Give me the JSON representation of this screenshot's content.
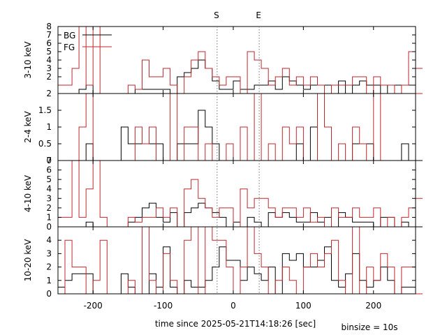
{
  "chart_data": {
    "type": "line",
    "style": "step-histogram",
    "xlabel": "time since 2025-05-21T14:18:26 [sec]",
    "binsize_label": "binsize = 10s",
    "xlim": [
      -250,
      260
    ],
    "xticks": [
      -200,
      -100,
      0,
      100,
      200
    ],
    "xticklabels": [
      "-200",
      "-100",
      "0",
      "100",
      "200"
    ],
    "markers": [
      {
        "label": "S",
        "x": -23
      },
      {
        "label": "E",
        "x": 37
      }
    ],
    "bin_start": -250,
    "bin_width": 10,
    "colors": {
      "BG": "#000000",
      "FG": "#c0272d"
    },
    "legend": {
      "entries": [
        "BG",
        "FG"
      ],
      "placement": "top-left"
    },
    "panels": [
      {
        "ylabel": "3-10 keV",
        "ylim": [
          0,
          8
        ],
        "yticks": [
          2,
          3,
          4,
          5,
          6,
          7,
          8
        ],
        "ytick_bottom": "2",
        "series": [
          {
            "name": "BG",
            "values": [
              0,
              0,
              0,
              0.5,
              1,
              0,
              0,
              0,
              0,
              0,
              0,
              0.5,
              0.5,
              0.5,
              0.5,
              0.5,
              0,
              2,
              2.5,
              3,
              4,
              3,
              1.5,
              0.5,
              0.5,
              1.5,
              0.5,
              0.5,
              1,
              1,
              1.5,
              0.5,
              2,
              1.5,
              1,
              0.5,
              1,
              1,
              1,
              0,
              1.5,
              0,
              1,
              1.5,
              1,
              1,
              0,
              1,
              1,
              1,
              1,
              0
            ]
          },
          {
            "name": "FG",
            "values": [
              1,
              1,
              3,
              8,
              1,
              8,
              0,
              0,
              0,
              0,
              1,
              0.5,
              4,
              2,
              2,
              3,
              1,
              0,
              2,
              4,
              5,
              3,
              2,
              1,
              2,
              2,
              0,
              5,
              4,
              3,
              1,
              2,
              3,
              1,
              2,
              1,
              2,
              1,
              0,
              1,
              1,
              1,
              2,
              2,
              0,
              2,
              1,
              1,
              0,
              1,
              5,
              3
            ]
          }
        ]
      },
      {
        "ylabel": "2-4 keV",
        "ylim": [
          0,
          2
        ],
        "yticks": [
          0.5,
          1,
          1.5
        ],
        "ytick_bottom": "0",
        "series": [
          {
            "name": "BG",
            "values": [
              0,
              0,
              0,
              0,
              0.5,
              0,
              0,
              0,
              0,
              1,
              0.5,
              0.5,
              0.5,
              0.5,
              0.5,
              0,
              0,
              0.5,
              0.5,
              0.5,
              1.5,
              1,
              0.5,
              0,
              0,
              0,
              0,
              0,
              0,
              0,
              0,
              0,
              0,
              0,
              0.5,
              0,
              1,
              0,
              0,
              0,
              0,
              0,
              0.5,
              0.5,
              0.5,
              0,
              0,
              0,
              0,
              0.5,
              0,
              0
            ]
          },
          {
            "name": "FG",
            "values": [
              0,
              0,
              0,
              1,
              2,
              0,
              0,
              0,
              0,
              0,
              0,
              1,
              0.5,
              1,
              0,
              0,
              2,
              0,
              1,
              1,
              0,
              0.5,
              0,
              0,
              0.5,
              0,
              1,
              0,
              2,
              0,
              0.5,
              0,
              1,
              0.5,
              1,
              0,
              0,
              2,
              1,
              0,
              0.5,
              0,
              1,
              0.5,
              0,
              2,
              0,
              0,
              0,
              0,
              0,
              2
            ]
          }
        ]
      },
      {
        "ylabel": "4-10 keV",
        "ylim": [
          0,
          7
        ],
        "yticks": [
          1,
          2,
          3,
          4,
          5,
          6,
          7
        ],
        "ytick_bottom": "0",
        "series": [
          {
            "name": "BG",
            "values": [
              0,
              0,
              0,
              0,
              0.5,
              0,
              0,
              0,
              0,
              0,
              0.5,
              1,
              2,
              2.5,
              1,
              0.5,
              1.5,
              0,
              1.5,
              2,
              2.5,
              2,
              1.5,
              1,
              0,
              0.5,
              0,
              1,
              0.5,
              0,
              1.5,
              1,
              1.5,
              1,
              0.5,
              0.5,
              1.5,
              0.5,
              1,
              0,
              1.5,
              1,
              0.5,
              0.5,
              0.5,
              0,
              1,
              1,
              0,
              0.5,
              0,
              0
            ]
          },
          {
            "name": "FG",
            "values": [
              1,
              1,
              7,
              1,
              4,
              7,
              1,
              0,
              0,
              0,
              1,
              0.5,
              1,
              1,
              2,
              1,
              2,
              0,
              4,
              5,
              3,
              2,
              1,
              2,
              2,
              0,
              4,
              2,
              3,
              3,
              2,
              1,
              2,
              2,
              1,
              2,
              0.5,
              1,
              0,
              2,
              1,
              1,
              2,
              1,
              1,
              2,
              0,
              1,
              0,
              1,
              2,
              3
            ]
          }
        ]
      },
      {
        "ylabel": "10-20 keV",
        "ylim": [
          0,
          5
        ],
        "yticks": [
          0,
          1,
          2,
          3,
          4
        ],
        "ytick_bottom": "0",
        "series": [
          {
            "name": "BG",
            "values": [
              0.5,
              1,
              1.5,
              1.5,
              1.5,
              0,
              0,
              0,
              0,
              1.5,
              0.5,
              0,
              0,
              1.5,
              0.5,
              3.5,
              0.5,
              0,
              1,
              0.5,
              0.5,
              1,
              2,
              3.5,
              2.5,
              2.5,
              1,
              2,
              1.5,
              1,
              2,
              0,
              3,
              2.5,
              3,
              2,
              2,
              2.5,
              3.5,
              1,
              0.5,
              1.5,
              3,
              1,
              0.5,
              1,
              2,
              1,
              0,
              0.5,
              0.5,
              0
            ]
          },
          {
            "name": "FG",
            "values": [
              0,
              4,
              2,
              2,
              0,
              1,
              4,
              0,
              0,
              0,
              1,
              0,
              5,
              1,
              0,
              3,
              1,
              0,
              4,
              5,
              0,
              5,
              4,
              4,
              2,
              0,
              2,
              5,
              3,
              2,
              0,
              1,
              2,
              1,
              0,
              2,
              3,
              2,
              3,
              4,
              1,
              0,
              5,
              0,
              2,
              1,
              3,
              2,
              0,
              2,
              2,
              0
            ]
          }
        ]
      }
    ]
  }
}
